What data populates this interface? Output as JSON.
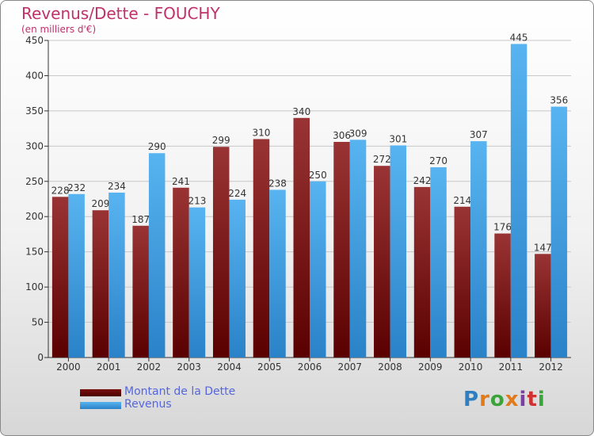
{
  "title": "Revenus/Dette - FOUCHY",
  "subtitle": "(en milliers d'€)",
  "chart_data": {
    "type": "bar",
    "categories": [
      "2000",
      "2001",
      "2002",
      "2003",
      "2004",
      "2005",
      "2006",
      "2007",
      "2008",
      "2009",
      "2010",
      "2011",
      "2012"
    ],
    "series": [
      {
        "name": "Montant de la Dette",
        "color": "#7a1010",
        "values": [
          228,
          209,
          187,
          241,
          299,
          310,
          340,
          306,
          272,
          242,
          214,
          176,
          147
        ]
      },
      {
        "name": "Revenus",
        "color": "#3f9fe3",
        "values": [
          232,
          234,
          290,
          213,
          224,
          238,
          250,
          309,
          301,
          270,
          307,
          445,
          356
        ]
      }
    ],
    "ylim": [
      0,
      450
    ],
    "yticks": [
      0,
      50,
      100,
      150,
      200,
      250,
      300,
      350,
      400,
      450
    ],
    "grid": true,
    "legend_position": "bottom-left"
  },
  "logo": {
    "letters": [
      "P",
      "r",
      "o",
      "x",
      "i",
      "t",
      "i"
    ],
    "colors": [
      "#2f7ec0",
      "#e07a1a",
      "#3aa43a",
      "#e07a1a",
      "#7a3fa0",
      "#d03030",
      "#3aa43a"
    ]
  }
}
